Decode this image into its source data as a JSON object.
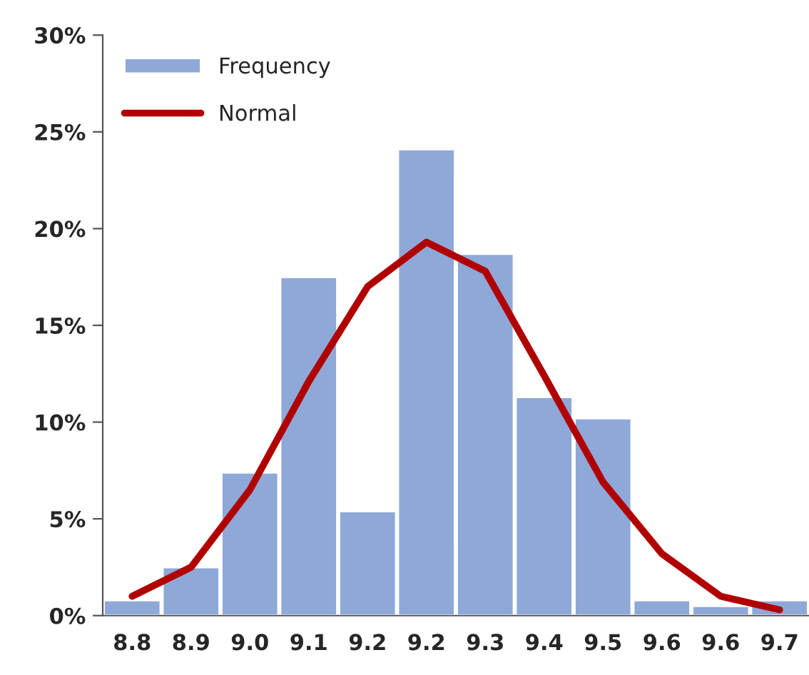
{
  "chart_data": {
    "type": "bar",
    "categories": [
      "8.8",
      "8.9",
      "9.0",
      "9.1",
      "9.2",
      "9.2",
      "9.3",
      "9.4",
      "9.5",
      "9.6",
      "9.6",
      "9.7"
    ],
    "series": [
      {
        "name": "Frequency",
        "color": "#8ea8d8",
        "values": [
          0.8,
          2.5,
          7.4,
          17.5,
          5.4,
          24.1,
          18.7,
          11.3,
          10.2,
          0.8,
          0.5,
          0.8
        ]
      },
      {
        "name": "Normal",
        "type": "line",
        "color": "#b00000",
        "values": [
          1.0,
          2.5,
          6.5,
          12.1,
          17.0,
          19.3,
          17.8,
          12.4,
          6.9,
          3.2,
          1.0,
          0.3
        ]
      }
    ],
    "ylim": [
      0,
      30
    ],
    "yticks": [
      {
        "value": 0,
        "label": "0%"
      },
      {
        "value": 5,
        "label": "5%"
      },
      {
        "value": 10,
        "label": "10%"
      },
      {
        "value": 15,
        "label": "15%"
      },
      {
        "value": 20,
        "label": "20%"
      },
      {
        "value": 25,
        "label": "25%"
      },
      {
        "value": 30,
        "label": "30%"
      }
    ],
    "legend": "top left",
    "grid": false,
    "marker": "none",
    "line_style": "solid"
  }
}
